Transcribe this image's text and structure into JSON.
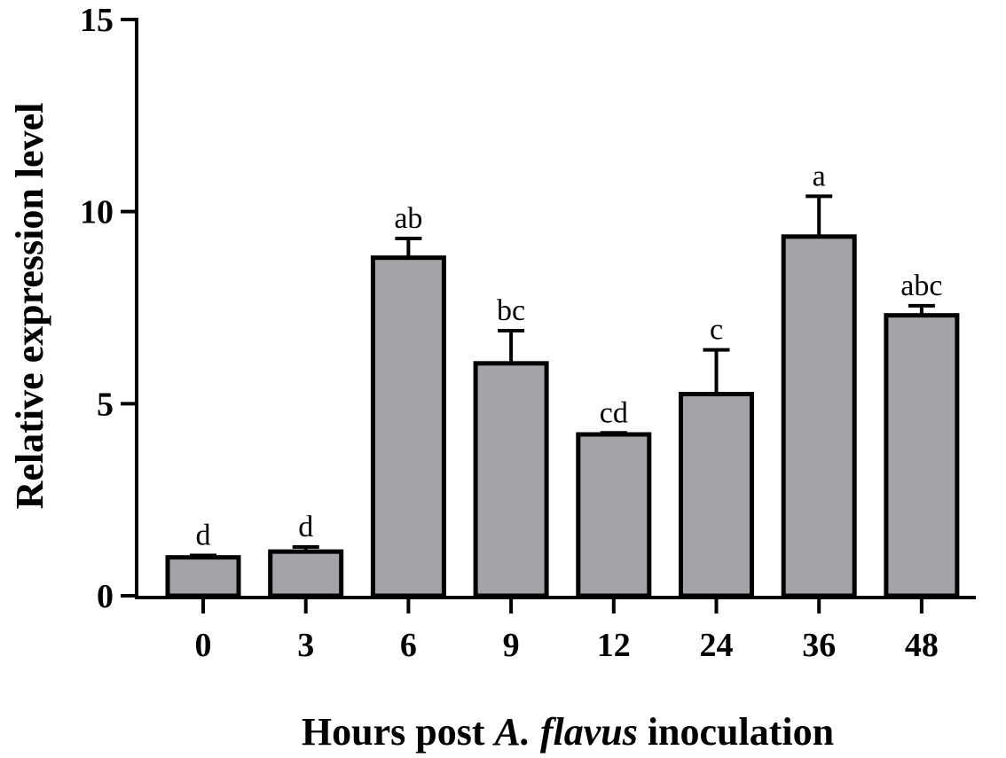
{
  "chart_data": {
    "type": "bar",
    "categories": [
      "0",
      "3",
      "6",
      "9",
      "12",
      "24",
      "36",
      "48"
    ],
    "values": [
      1.0,
      1.15,
      8.8,
      6.05,
      4.2,
      5.25,
      9.35,
      7.3
    ],
    "errors": [
      0.05,
      0.12,
      0.5,
      0.85,
      0.04,
      1.15,
      1.05,
      0.25
    ],
    "significance_labels": [
      "d",
      "d",
      "ab",
      "bc",
      "cd",
      "c",
      "a",
      "abc"
    ],
    "ylabel": "Relative expression level",
    "xlabel_parts": {
      "pre": "Hours post ",
      "italic": "A. flavus",
      "post": " inoculation"
    },
    "ylim": [
      0,
      15
    ],
    "yticks": [
      "0",
      "5",
      "10",
      "15"
    ],
    "ytick_values": [
      0,
      5,
      10,
      15
    ],
    "grid": false,
    "colors": {
      "bar_fill": "#a3a3a8",
      "bar_stroke": "#000000"
    }
  }
}
